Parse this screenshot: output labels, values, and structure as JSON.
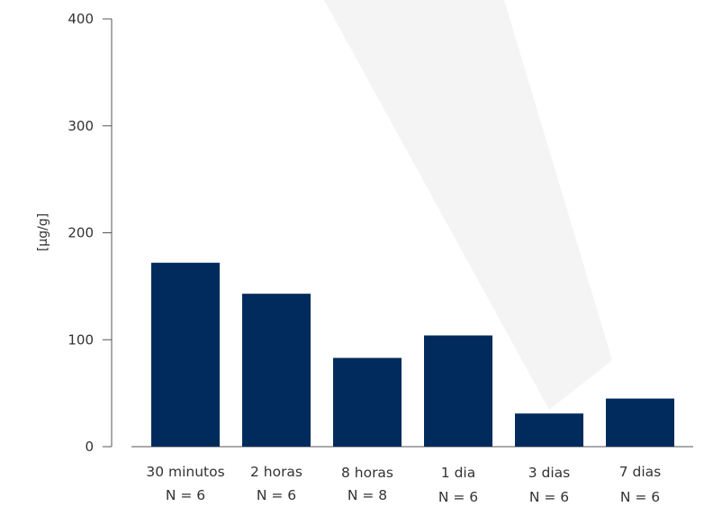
{
  "chart_data": {
    "type": "bar",
    "categories": [
      "30 minutos",
      "2 horas",
      "8 horas",
      "1 dia",
      "3 dias",
      "7 dias"
    ],
    "category_sublabels": [
      "N = 6",
      "N = 6",
      "N = 8",
      "N = 6",
      "N = 6",
      "N = 6"
    ],
    "values": [
      172,
      143,
      83,
      104,
      31,
      45
    ],
    "title": "",
    "xlabel": "",
    "ylabel": "[µg/g]",
    "ylim": [
      0,
      400
    ],
    "yticks": [
      0,
      100,
      200,
      300,
      400
    ],
    "grid": false,
    "bar_color": "#002b5c",
    "axis_color": "#555555",
    "background_shape_color": "#f4f4f4"
  }
}
